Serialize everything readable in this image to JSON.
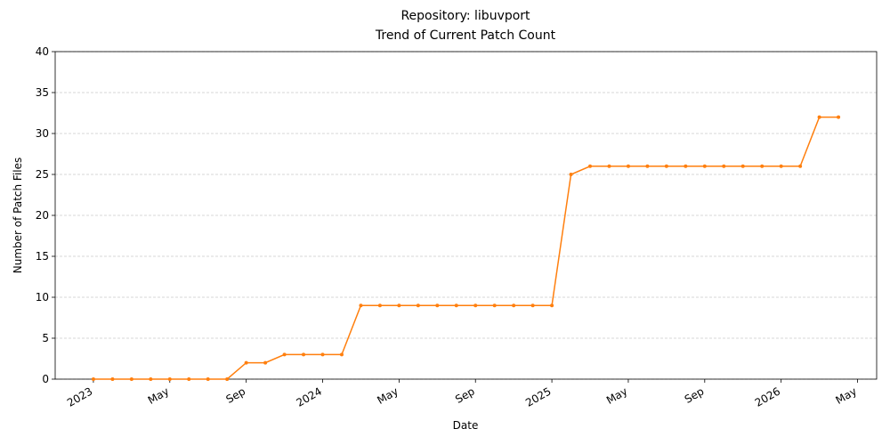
{
  "chart_data": {
    "type": "line",
    "title": "Repository: libuvport",
    "subtitle": "Trend of Current Patch Count",
    "x_label": "Date",
    "y_label": "Number of Patch Files",
    "x": [
      "2023-01",
      "2023-02",
      "2023-03",
      "2023-04",
      "2023-05",
      "2023-06",
      "2023-07",
      "2023-08",
      "2023-09",
      "2023-10",
      "2023-11",
      "2023-12",
      "2024-01",
      "2024-02",
      "2024-03",
      "2024-04",
      "2024-05",
      "2024-06",
      "2024-07",
      "2024-08",
      "2024-09",
      "2024-10",
      "2024-11",
      "2024-12",
      "2025-01",
      "2025-02",
      "2025-03",
      "2025-04",
      "2025-05",
      "2025-06",
      "2025-07",
      "2025-08",
      "2025-09",
      "2025-10",
      "2025-11",
      "2025-12",
      "2026-01",
      "2026-02",
      "2026-03",
      "2026-04"
    ],
    "series": [
      {
        "color": "#ff7f0e",
        "values": [
          0,
          0,
          0,
          0,
          0,
          0,
          0,
          0,
          2,
          2,
          3,
          3,
          3,
          3,
          9,
          9,
          9,
          9,
          9,
          9,
          9,
          9,
          9,
          9,
          9,
          25,
          26,
          26,
          26,
          26,
          26,
          26,
          26,
          26,
          26,
          26,
          26,
          26,
          32,
          32
        ]
      }
    ],
    "xlim": [
      "2022-11",
      "2026-06"
    ],
    "xticks": [
      {
        "value": "2023-01",
        "label": "2023"
      },
      {
        "value": "2023-05",
        "label": "May"
      },
      {
        "value": "2023-09",
        "label": "Sep"
      },
      {
        "value": "2024-01",
        "label": "2024"
      },
      {
        "value": "2024-05",
        "label": "May"
      },
      {
        "value": "2024-09",
        "label": "Sep"
      },
      {
        "value": "2025-01",
        "label": "2025"
      },
      {
        "value": "2025-05",
        "label": "May"
      },
      {
        "value": "2025-09",
        "label": "Sep"
      },
      {
        "value": "2026-01",
        "label": "2026"
      },
      {
        "value": "2026-05",
        "label": "May"
      }
    ],
    "ylim": [
      0,
      40
    ],
    "yticks": [
      0,
      5,
      10,
      15,
      20,
      25,
      30,
      35,
      40
    ],
    "grid": true
  }
}
